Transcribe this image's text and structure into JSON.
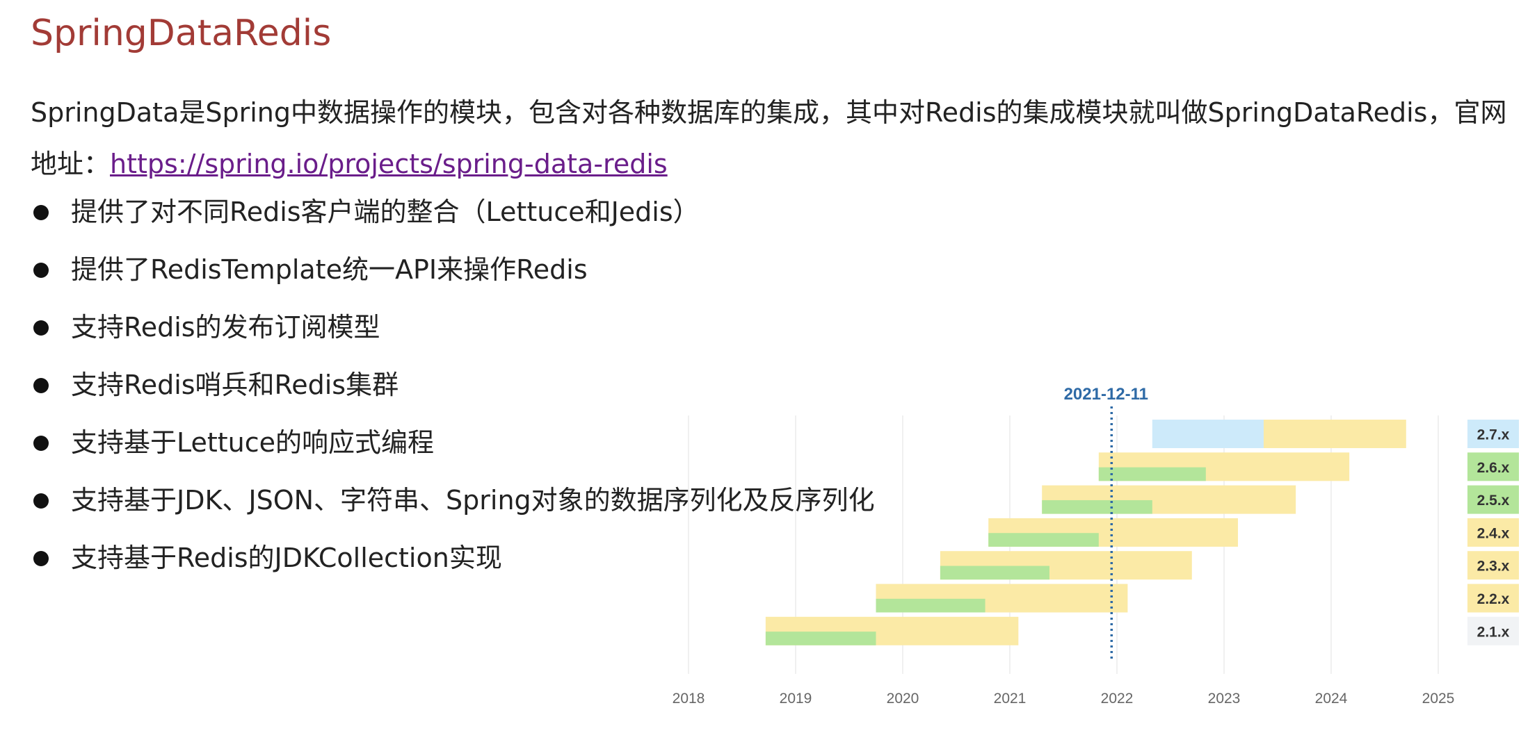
{
  "page": {
    "title": "SpringDataRedis",
    "intro_text": "SpringData是Spring中数据操作的模块，包含对各种数据库的集成，其中对Redis的集成模块就叫做SpringDataRedis，官网地址：",
    "link_text": "https://spring.io/projects/spring-data-redis",
    "bullets": [
      "提供了对不同Redis客户端的整合（Lettuce和Jedis）",
      "提供了RedisTemplate统一API来操作Redis",
      "支持Redis的发布订阅模型",
      "支持Redis哨兵和Redis集群",
      "支持基于Lettuce的响应式编程",
      "支持基于JDK、JSON、字符串、Spring对象的数据序列化及反序列化",
      "支持基于Redis的JDKCollection实现"
    ]
  },
  "chart_data": {
    "type": "gantt",
    "marker": {
      "label": "2021-12-11",
      "date": 2021.95
    },
    "x_ticks": [
      "2018",
      "2019",
      "2020",
      "2021",
      "2022",
      "2023",
      "2024",
      "2025"
    ],
    "xlim": [
      2018,
      2025
    ],
    "colors": {
      "oss": "#b3e59a",
      "commercial": "#fbeaa6",
      "future": "#cdeafa",
      "marker": "#2e6aa6"
    },
    "versions": [
      {
        "label": "2.7.x",
        "oss_start": 2022.33,
        "oss_end": 2023.37,
        "commercial_end": 2024.7,
        "future": true,
        "label_bg": "#cdeafa"
      },
      {
        "label": "2.6.x",
        "oss_start": 2021.83,
        "oss_end": 2022.83,
        "commercial_end": 2024.17,
        "future": false,
        "label_bg": "#b3e59a"
      },
      {
        "label": "2.5.x",
        "oss_start": 2021.3,
        "oss_end": 2022.33,
        "commercial_end": 2023.67,
        "future": false,
        "label_bg": "#b3e59a"
      },
      {
        "label": "2.4.x",
        "oss_start": 2020.8,
        "oss_end": 2021.83,
        "commercial_end": 2023.13,
        "future": false,
        "label_bg": "#fbeaa6"
      },
      {
        "label": "2.3.x",
        "oss_start": 2020.35,
        "oss_end": 2021.37,
        "commercial_end": 2022.7,
        "future": false,
        "label_bg": "#fbeaa6"
      },
      {
        "label": "2.2.x",
        "oss_start": 2019.75,
        "oss_end": 2020.77,
        "commercial_end": 2022.1,
        "future": false,
        "label_bg": "#fbeaa6"
      },
      {
        "label": "2.1.x",
        "oss_start": 2018.72,
        "oss_end": 2019.75,
        "commercial_end": 2021.08,
        "future": false,
        "label_bg": "#f1f3f5"
      }
    ]
  }
}
